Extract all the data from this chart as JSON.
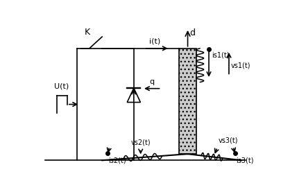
{
  "fig_width": 4.06,
  "fig_height": 2.77,
  "bg_color": "#ffffff",
  "line_color": "#000000",
  "xlim": [
    0,
    10
  ],
  "ylim": [
    0,
    7
  ],
  "K_label": "K",
  "i_label": "i(t)",
  "U_label": "U(t)",
  "d_label": "d",
  "q_label": "q",
  "is1_label": "is1(t)",
  "vs1_label": "vs1(t)",
  "vs2_label": "vs2(t)",
  "is2_label": "is2(t)",
  "vs3_label": "vs3(t)",
  "is3_label": "is3(t)"
}
